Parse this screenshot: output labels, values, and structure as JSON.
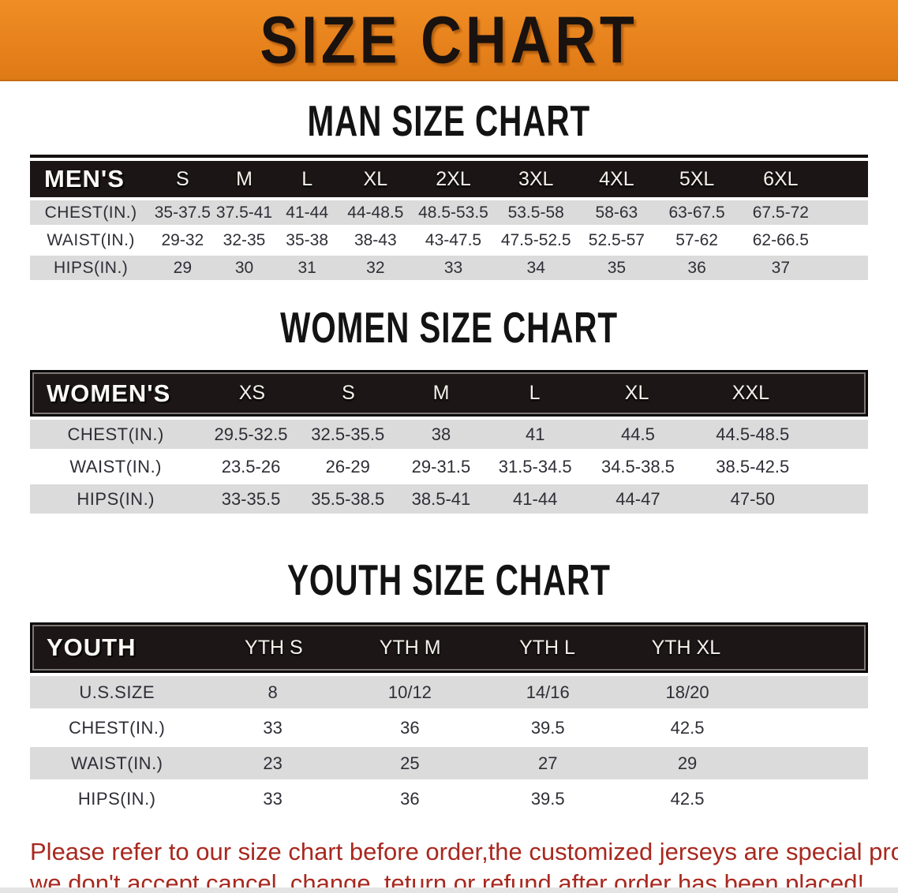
{
  "banner": {
    "title": "SIZE CHART"
  },
  "men": {
    "heading": "MAN SIZE CHART",
    "label": "MEN'S",
    "sizes": [
      "S",
      "M",
      "L",
      "XL",
      "2XL",
      "3XL",
      "4XL",
      "5XL",
      "6XL"
    ],
    "rows": [
      {
        "label": "CHEST(IN.)",
        "values": [
          "35-37.5",
          "37.5-41",
          "41-44",
          "44-48.5",
          "48.5-53.5",
          "53.5-58",
          "58-63",
          "63-67.5",
          "67.5-72"
        ]
      },
      {
        "label": "WAIST(IN.)",
        "values": [
          "29-32",
          "32-35",
          "35-38",
          "38-43",
          "43-47.5",
          "47.5-52.5",
          "52.5-57",
          "57-62",
          "62-66.5"
        ]
      },
      {
        "label": "HIPS(IN.)",
        "values": [
          "29",
          "30",
          "31",
          "32",
          "33",
          "34",
          "35",
          "36",
          "37"
        ]
      }
    ]
  },
  "women": {
    "heading": "WOMEN SIZE CHART",
    "label": "WOMEN'S",
    "sizes": [
      "XS",
      "S",
      "M",
      "L",
      "XL",
      "XXL"
    ],
    "rows": [
      {
        "label": "CHEST(IN.)",
        "values": [
          "29.5-32.5",
          "32.5-35.5",
          "38",
          "41",
          "44.5",
          "44.5-48.5"
        ]
      },
      {
        "label": "WAIST(IN.)",
        "values": [
          "23.5-26",
          "26-29",
          "29-31.5",
          "31.5-34.5",
          "34.5-38.5",
          "38.5-42.5"
        ]
      },
      {
        "label": "HIPS(IN.)",
        "values": [
          "33-35.5",
          "35.5-38.5",
          "38.5-41",
          "41-44",
          "44-47",
          "47-50"
        ]
      }
    ]
  },
  "youth": {
    "heading": "YOUTH SIZE CHART",
    "label": "YOUTH",
    "sizes": [
      "YTH S",
      "YTH M",
      "YTH L",
      "YTH XL"
    ],
    "rows": [
      {
        "label": "U.S.SIZE",
        "values": [
          "8",
          "10/12",
          "14/16",
          "18/20"
        ]
      },
      {
        "label": "CHEST(IN.)",
        "values": [
          "33",
          "36",
          "39.5",
          "42.5"
        ]
      },
      {
        "label": "WAIST(IN.)",
        "values": [
          "23",
          "25",
          "27",
          "29"
        ]
      },
      {
        "label": "HIPS(IN.)",
        "values": [
          "33",
          "36",
          "39.5",
          "42.5"
        ]
      }
    ]
  },
  "disclaimer": {
    "line1": "Please refer to our size chart before order,the customized jerseys are special products,",
    "line2": "we don't accept cancel, change, teturn or refund after order has been placed!"
  },
  "colors": {
    "banner_bg": "#E8831D",
    "table_header_bg": "#1C1616",
    "row_stripe_bg": "#DBDBDB",
    "disclaimer_text": "#A8281F"
  }
}
